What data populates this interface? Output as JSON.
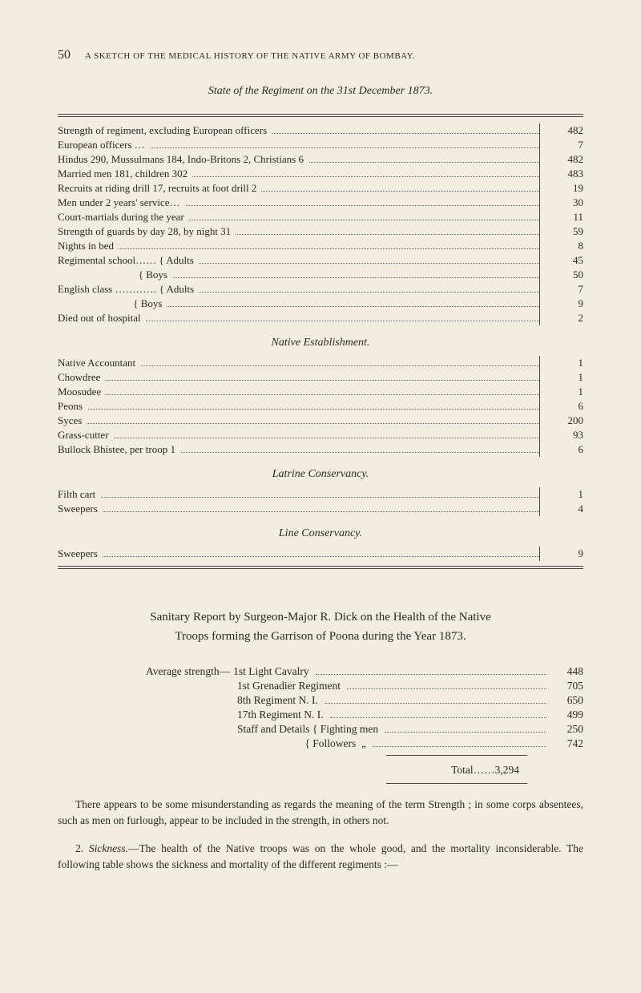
{
  "page_number": "50",
  "running_head": "A SKETCH OF THE MEDICAL HISTORY OF THE NATIVE ARMY OF BOMBAY.",
  "title": "State of the Regiment on the 31st December 1873.",
  "ledger_main": [
    {
      "label": "Strength of regiment, excluding European officers",
      "value": "482"
    },
    {
      "label": "European officers …",
      "value": "7"
    },
    {
      "label": "Hindus 290, Mussulmans 184, Indo-Britons 2, Christians 6",
      "value": "482"
    },
    {
      "label": "Married men 181, children 302",
      "value": "483"
    },
    {
      "label": "Recruits at riding drill 17, recruits at foot drill 2",
      "value": "19"
    },
    {
      "label": "Men under 2 years' service…",
      "value": "30"
    },
    {
      "label": "Court-martials during the year",
      "value": "11"
    },
    {
      "label": "Strength of guards by day 28, by night 31",
      "value": "59"
    },
    {
      "label": "Nights in bed",
      "value": "8"
    },
    {
      "label": "Regimental school…… { Adults",
      "value": "45"
    },
    {
      "label": "                               { Boys",
      "value": "50"
    },
    {
      "label": "English class ………… { Adults",
      "value": "7"
    },
    {
      "label": "                             { Boys",
      "value": "9"
    },
    {
      "label": "Died out of hospital",
      "value": "2"
    }
  ],
  "section_native": "Native Establishment.",
  "ledger_native": [
    {
      "label": "Native Accountant",
      "value": "1"
    },
    {
      "label": "Chowdree",
      "value": "1"
    },
    {
      "label": "Moosudee",
      "value": "1"
    },
    {
      "label": "Peons",
      "value": "6"
    },
    {
      "label": "Syces",
      "value": "200"
    },
    {
      "label": "Grass-cutter",
      "value": "93"
    },
    {
      "label": "Bullock Bhistee, per troop 1",
      "value": "6"
    }
  ],
  "section_latrine": "Latrine Conservancy.",
  "ledger_latrine": [
    {
      "label": "Filth cart",
      "value": "1"
    },
    {
      "label": "Sweepers",
      "value": "4"
    }
  ],
  "section_line": "Line Conservancy.",
  "ledger_line": [
    {
      "label": "Sweepers",
      "value": "9"
    }
  ],
  "sanitary": {
    "line1": "Sanitary Report by Surgeon-Major R. Dick on the Health of the Native",
    "line2": "Troops forming the Garrison of Poona during the Year 1873."
  },
  "avg_lead": "Average strength—",
  "avg_rows": [
    {
      "label": "1st Light Cavalry",
      "value": "448"
    },
    {
      "label": "1st Grenadier Regiment",
      "value": "705"
    },
    {
      "label": "8th Regiment N. I.",
      "value": "650"
    },
    {
      "label": "17th Regiment N. I.",
      "value": "499"
    },
    {
      "label": "Staff and Details { Fighting men",
      "value": "250"
    },
    {
      "label": "                         { Followers  „",
      "value": "742"
    }
  ],
  "total_label": "Total……",
  "total_value": "3,294",
  "para1": "There appears to be some misunderstanding as regards the meaning of the term Strength ; in some corps absentees, such as men on furlough, appear to be included in the strength, in others not.",
  "para2_lead": "2.  ",
  "para2_em": "Sickness.",
  "para2_rest": "—The health of the Native troops was on the whole good, and the mortality inconsiderable. The following table shows the sickness and mortality of the different regiments :—"
}
